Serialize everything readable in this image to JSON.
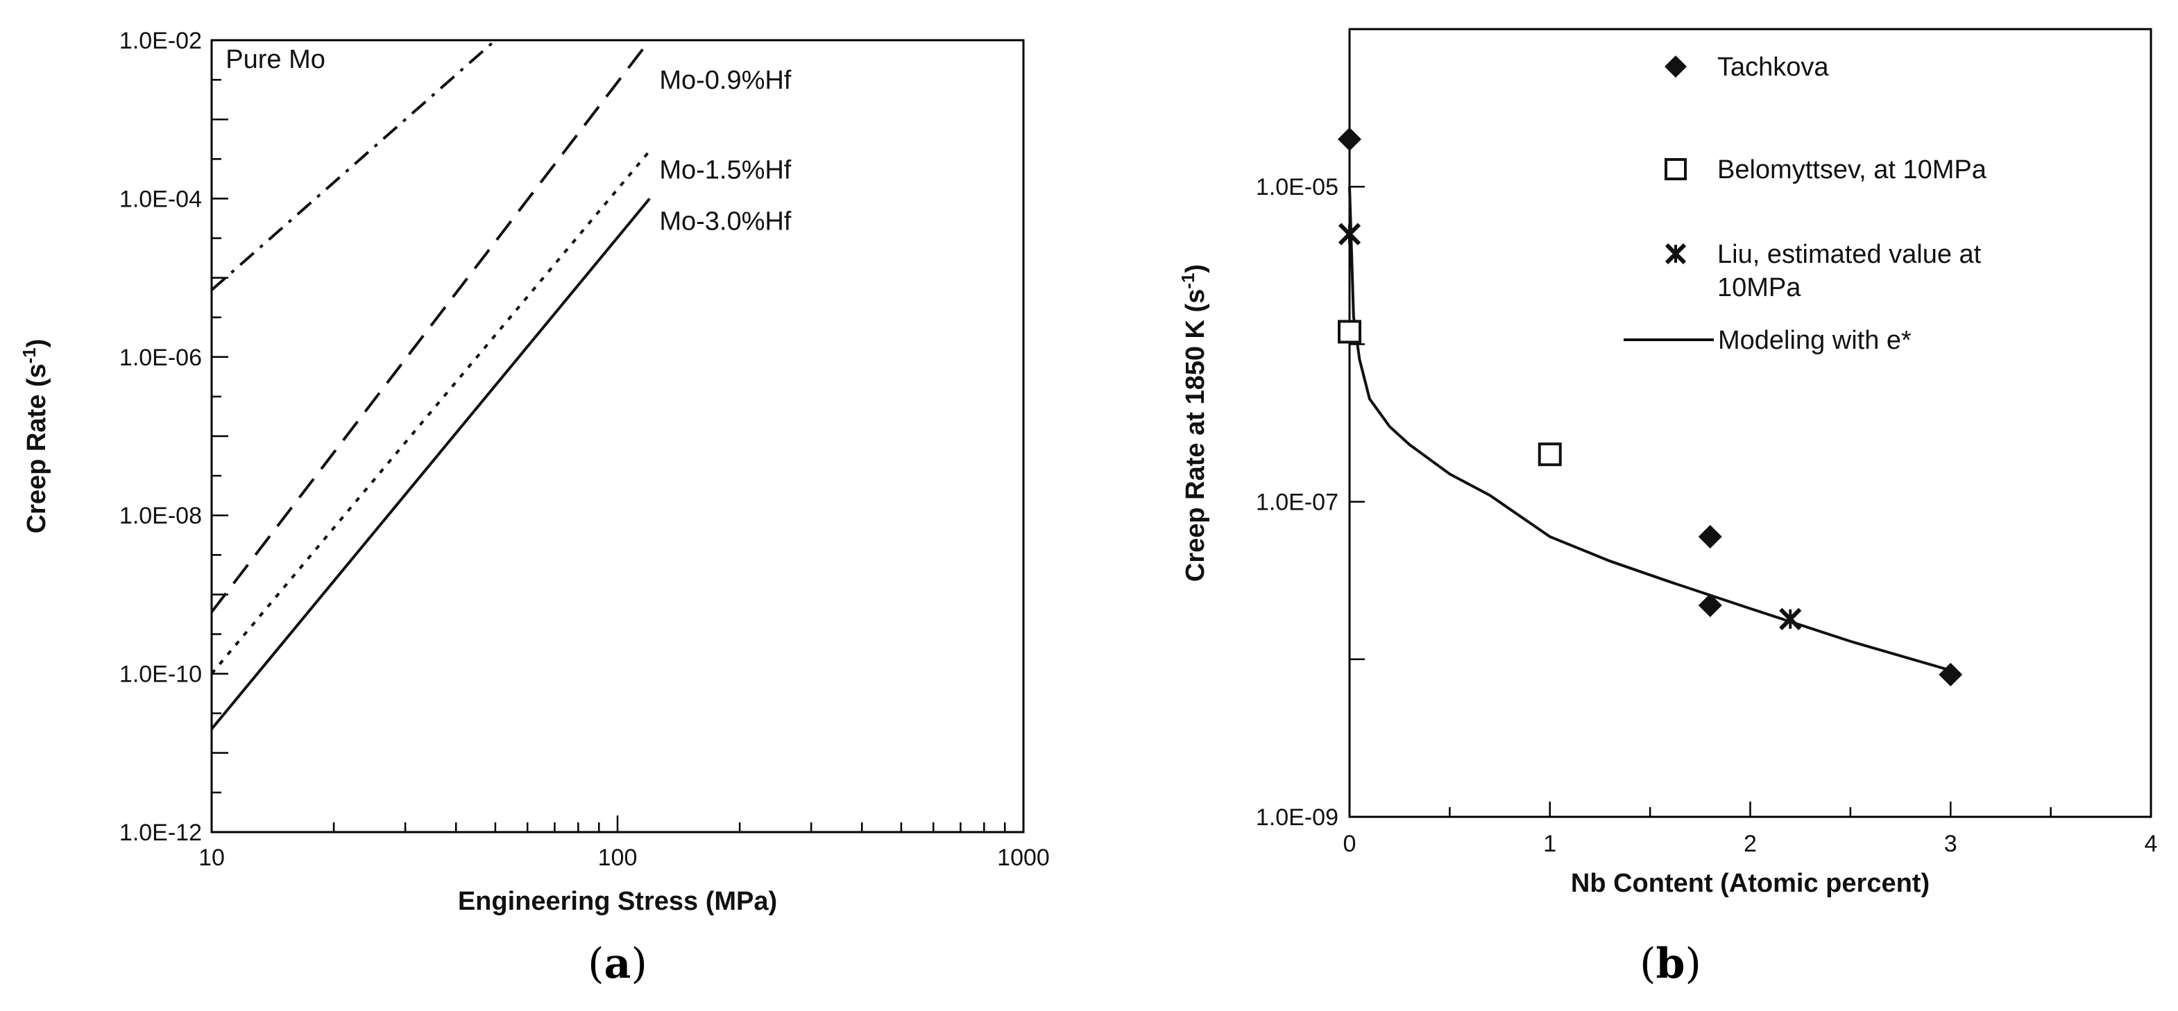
{
  "chart_data": [
    {
      "type": "line",
      "panel": "(a)",
      "panel_letter": "a",
      "xlabel": "Engineering Stress (MPa)",
      "ylabel": "Creep Rate (s-1)",
      "ylabel_parts": {
        "main": "Creep Rate (s",
        "sup": "-1",
        "end": ")"
      },
      "x_scale": "log",
      "y_scale": "log",
      "xlim": [
        10,
        1000
      ],
      "ylim": [
        1e-12,
        0.01
      ],
      "x_ticks": [
        10,
        100,
        1000
      ],
      "x_tick_labels": [
        "10",
        "100",
        "1000"
      ],
      "y_ticks": [
        1e-12,
        1e-10,
        1e-08,
        1e-06,
        0.0001,
        0.01
      ],
      "y_tick_labels": [
        "1.0E-12",
        "1.0E-10",
        "1.0E-08",
        "1.0E-06",
        "1.0E-04",
        "1.0E-02"
      ],
      "series": [
        {
          "name": "Pure Mo",
          "style": "dashdot",
          "x": [
            10,
            50
          ],
          "y": [
            7e-06,
            0.01
          ]
        },
        {
          "name": "Mo-0.9%Hf",
          "style": "dashed",
          "x": [
            10,
            120
          ],
          "y": [
            6e-10,
            0.01
          ]
        },
        {
          "name": "Mo-1.5%Hf",
          "style": "dotted",
          "x": [
            10,
            120
          ],
          "y": [
            1e-10,
            0.0004
          ]
        },
        {
          "name": "Mo-3.0%Hf",
          "style": "solid",
          "x": [
            10,
            120
          ],
          "y": [
            2e-11,
            0.0001
          ]
        }
      ]
    },
    {
      "type": "scatter",
      "panel": "(b)",
      "panel_letter": "b",
      "xlabel": "Nb Content (Atomic percent)",
      "ylabel": "Creep Rate at 1850 K (s-1)",
      "ylabel_parts": {
        "main": "Creep Rate at 1850 K (s",
        "sup": "-1",
        "end": ")"
      },
      "x_scale": "linear",
      "y_scale": "log",
      "xlim": [
        0,
        4
      ],
      "ylim": [
        1e-09,
        0.0001
      ],
      "x_ticks": [
        0,
        1,
        2,
        3,
        4
      ],
      "x_tick_labels": [
        "0",
        "1",
        "2",
        "3",
        "4"
      ],
      "y_ticks": [
        1e-09,
        1e-07,
        1e-05
      ],
      "y_tick_labels": [
        "1.0E-09",
        "1.0E-07",
        "1.0E-05"
      ],
      "series": [
        {
          "name": "Tachkova",
          "marker": "filled-diamond",
          "x": [
            0,
            1.8,
            1.8,
            3
          ],
          "y": [
            2e-05,
            6e-08,
            2.2e-08,
            8e-09
          ]
        },
        {
          "name": "Belomyttsev, at 10MPa",
          "marker": "open-square",
          "x": [
            0,
            1
          ],
          "y": [
            1.2e-06,
            2e-07
          ]
        },
        {
          "name": "Liu, estimated value at 10MPa",
          "name_lines": [
            "Liu, estimated value at",
            "10MPa"
          ],
          "marker": "star-x",
          "x": [
            0,
            2.2
          ],
          "y": [
            5e-06,
            1.8e-08
          ]
        },
        {
          "name": "Modeling with e*",
          "style": "solid-line",
          "x": [
            0,
            0.02,
            0.05,
            0.1,
            0.2,
            0.3,
            0.5,
            0.7,
            1.0,
            1.3,
            1.6,
            2.0,
            2.5,
            3.0
          ],
          "y": [
            1e-05,
            1.5e-06,
            8e-07,
            4.5e-07,
            3e-07,
            2.3e-07,
            1.5e-07,
            1.1e-07,
            6e-08,
            4.2e-08,
            3.1e-08,
            2.1e-08,
            1.3e-08,
            8.5e-09
          ]
        }
      ]
    }
  ]
}
